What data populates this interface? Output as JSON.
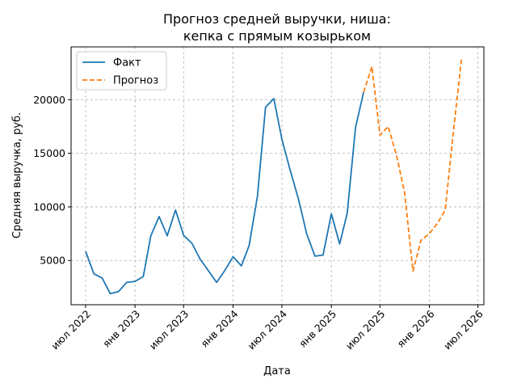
{
  "chart_data": {
    "type": "line",
    "title_lines": [
      "Прогноз средней выручки, ниша:",
      "кепка с прямым козырьком"
    ],
    "xlabel": "Дата",
    "ylabel": "Средняя выручка, руб.",
    "x_ticks": [
      {
        "date": "2022-07-01",
        "label": "июл 2022"
      },
      {
        "date": "2023-01-01",
        "label": "янв 2023"
      },
      {
        "date": "2023-07-01",
        "label": "июл 2023"
      },
      {
        "date": "2024-01-01",
        "label": "янв 2024"
      },
      {
        "date": "2024-07-01",
        "label": "июл 2024"
      },
      {
        "date": "2025-01-01",
        "label": "янв 2025"
      },
      {
        "date": "2025-07-01",
        "label": "июл 2025"
      },
      {
        "date": "2026-01-01",
        "label": "янв 2026"
      },
      {
        "date": "2026-07-01",
        "label": "июл 2026"
      }
    ],
    "y_ticks": [
      {
        "value": 5000,
        "label": "5000"
      },
      {
        "value": 10000,
        "label": "10000"
      },
      {
        "value": 15000,
        "label": "15000"
      },
      {
        "value": 20000,
        "label": "20000"
      }
    ],
    "xlim": [
      "2022-05-08",
      "2026-07-23"
    ],
    "ylim": [
      870,
      24930
    ],
    "grid": true,
    "legend_position": "top-left",
    "series": [
      {
        "name": "Факт",
        "color": "#1f77b4",
        "style": "solid",
        "points": [
          [
            "2022-07-01",
            5850
          ],
          [
            "2022-08-01",
            3750
          ],
          [
            "2022-09-01",
            3350
          ],
          [
            "2022-10-01",
            1900
          ],
          [
            "2022-11-01",
            2100
          ],
          [
            "2022-12-01",
            2950
          ],
          [
            "2023-01-01",
            3050
          ],
          [
            "2023-02-01",
            3500
          ],
          [
            "2023-03-01",
            7300
          ],
          [
            "2023-04-01",
            9100
          ],
          [
            "2023-05-01",
            7300
          ],
          [
            "2023-06-01",
            9700
          ],
          [
            "2023-07-01",
            7350
          ],
          [
            "2023-08-01",
            6600
          ],
          [
            "2023-09-01",
            5100
          ],
          [
            "2023-10-01",
            4050
          ],
          [
            "2023-11-01",
            2950
          ],
          [
            "2023-12-01",
            4050
          ],
          [
            "2024-01-01",
            5350
          ],
          [
            "2024-02-01",
            4500
          ],
          [
            "2024-03-01",
            6400
          ],
          [
            "2024-04-01",
            11000
          ],
          [
            "2024-05-01",
            19300
          ],
          [
            "2024-06-01",
            20100
          ],
          [
            "2024-07-01",
            16300
          ],
          [
            "2024-08-01",
            13400
          ],
          [
            "2024-09-01",
            10700
          ],
          [
            "2024-10-01",
            7500
          ],
          [
            "2024-11-01",
            5400
          ],
          [
            "2024-12-01",
            5500
          ],
          [
            "2025-01-01",
            9350
          ],
          [
            "2025-02-01",
            6550
          ],
          [
            "2025-03-01",
            9400
          ],
          [
            "2025-04-01",
            17400
          ],
          [
            "2025-05-01",
            20700
          ]
        ]
      },
      {
        "name": "Прогноз",
        "color": "#ff7f0e",
        "style": "dashed",
        "points": [
          [
            "2025-05-01",
            20700
          ],
          [
            "2025-06-01",
            23100
          ],
          [
            "2025-07-01",
            16700
          ],
          [
            "2025-08-01",
            17500
          ],
          [
            "2025-09-01",
            14800
          ],
          [
            "2025-10-01",
            11300
          ],
          [
            "2025-11-01",
            4000
          ],
          [
            "2025-12-01",
            6900
          ],
          [
            "2026-01-01",
            7500
          ],
          [
            "2026-02-01",
            8500
          ],
          [
            "2026-03-01",
            9700
          ],
          [
            "2026-04-01",
            17100
          ],
          [
            "2026-05-01",
            23900
          ]
        ]
      }
    ]
  }
}
